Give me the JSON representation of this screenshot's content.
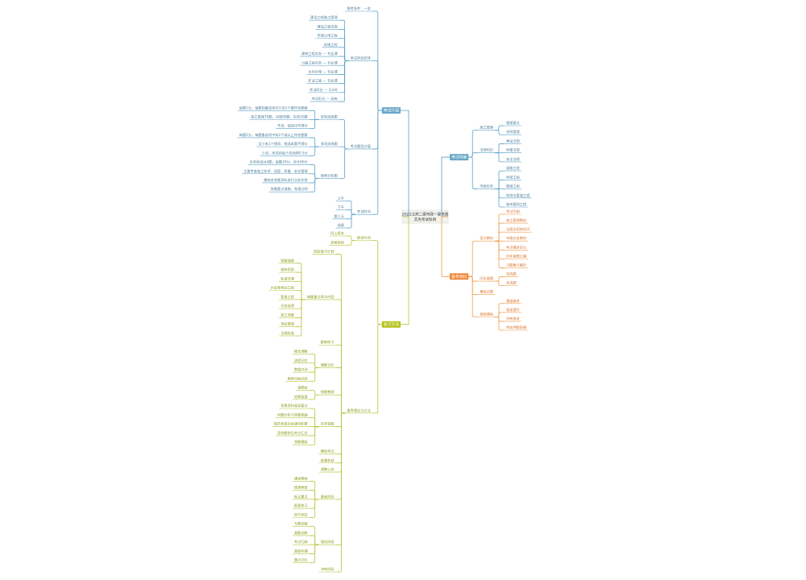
{
  "center": {
    "lines": [
      "2022江苏二建市政一建市政",
      "实务考试科目"
    ]
  },
  "branches": [
    {
      "label": "考试内容",
      "children": [
        {
          "label": "施工管理",
          "children": [
            {
              "label": "管理要点"
            },
            {
              "label": "合同管理"
            }
          ]
        },
        {
          "label": "法规知识",
          "children": [
            {
              "label": "建设法规"
            },
            {
              "label": "质量法规"
            },
            {
              "label": "安全法规"
            }
          ]
        },
        {
          "label": "市政实务",
          "children": [
            {
              "label": "道路工程"
            },
            {
              "label": "桥梁工程"
            },
            {
              "label": "隧道工程"
            },
            {
              "label": "给排水管道工程"
            },
            {
              "label": "城市管网工程"
            }
          ]
        }
      ]
    },
    {
      "label": "备考资料",
      "children": [
        {
          "label": "官方教材",
          "children": [
            {
              "label": "考试大纲"
            },
            {
              "label": "施工管理教材"
            },
            {
              "label": "法规及相关知识"
            },
            {
              "label": "市政实务教材"
            },
            {
              "label": "考点精讲讲义"
            },
            {
              "label": "历年真题汇编"
            },
            {
              "label": "习题集与解析"
            }
          ]
        },
        {
          "label": "历年真题",
          "children": [
            {
              "label": "单选题"
            },
            {
              "label": "多选题"
            }
          ]
        },
        {
          "label": "模拟试题"
        },
        {
          "label": "视频课程",
          "children": [
            {
              "label": "基础精讲"
            },
            {
              "label": "强化提升"
            },
            {
              "label": "冲刺串讲"
            },
            {
              "label": "考前押题直播"
            }
          ]
        }
      ]
    },
    {
      "label": "考试介绍",
      "children": [
        {
          "label": "报考条件：一览"
        },
        {
          "label": "考试科目安排",
          "children": [
            {
              "label": "建设工程施工管理"
            },
            {
              "label": "建设工程法规"
            },
            {
              "label": "市政公用工程"
            },
            {
              "label": "机电工程"
            },
            {
              "label": "建筑工程实务 — 专业课"
            },
            {
              "label": "公路工程实务 — 专业课"
            },
            {
              "label": "水利水电 — 专业课"
            },
            {
              "label": "矿业工程 — 专业课"
            },
            {
              "label": "考试时长 — 3小时"
            },
            {
              "label": "考试形式 — 闭卷"
            }
          ]
        },
        {
          "label": "考试题型分值",
          "children": [
            {
              "label": "单项选择题",
              "children": [
                {
                  "label": "每题1分，每题的备选项中只有1个最符合题意"
                },
                {
                  "label": "施工管理70题，法规60题，实务20题"
                },
                {
                  "label": "不选、错选均不得分"
                }
              ]
            },
            {
              "label": "多项选择题",
              "children": [
                {
                  "label": "每题2分，每题备选项中有2个或以上符合题意"
                },
                {
                  "label": "至少有1个错项，错选本题不得分"
                },
                {
                  "label": "少选，所选的每个选项得0.5分"
                }
              ]
            },
            {
              "label": "案例分析题",
              "children": [
                {
                  "label": "实务科目共4题，每题20分，合计80分"
                },
                {
                  "label": "主要考查施工技术、进度、质量、安全管理"
                },
                {
                  "label": "需结合背景资料进行分析作答"
                },
                {
                  "label": "答题要点清晰，条理分明"
                }
              ]
            }
          ]
        },
        {
          "label": "考试时间",
          "children": [
            {
              "label": "上午"
            },
            {
              "label": "下午"
            },
            {
              "label": "第二天"
            },
            {
              "label": "成绩"
            }
          ]
        }
      ]
    },
    {
      "label": "复习方法",
      "children": [
        {
          "label": "报名时间",
          "children": [
            {
              "label": "网上报名"
            },
            {
              "label": "资格审核"
            }
          ]
        },
        {
          "label": "备考建议与方法",
          "children": [
            {
              "label": "制定复习计划"
            },
            {
              "label": "掌握重点章节内容",
              "children": [
                {
                  "label": "城镇道路"
                },
                {
                  "label": "城市桥梁"
                },
                {
                  "label": "轨道交通"
                },
                {
                  "label": "水处理场站工程"
                },
                {
                  "label": "管道工程"
                },
                {
                  "label": "垃圾处理"
                },
                {
                  "label": "施工测量"
                },
                {
                  "label": "项目管理"
                },
                {
                  "label": "法规标准"
                }
              ]
            },
            {
              "label": "勤做练习"
            },
            {
              "label": "理解记忆",
              "children": [
                {
                  "label": "概念理解"
                },
                {
                  "label": "流程记忆"
                },
                {
                  "label": "数据口诀"
                },
                {
                  "label": "图表归纳总结"
                }
              ]
            },
            {
              "label": "错题整理",
              "children": [
                {
                  "label": "错题本"
                },
                {
                  "label": "定期复盘"
                }
              ]
            },
            {
              "label": "实务答题",
              "children": [
                {
                  "label": "背景资料阅读要点"
                },
                {
                  "label": "问题分析与答题思路"
                },
                {
                  "label": "规范用语及关键词积累"
                },
                {
                  "label": "案例题常见考点汇总"
                },
                {
                  "label": "答题模板"
                }
              ]
            },
            {
              "label": "模拟考试"
            },
            {
              "label": "查漏补缺"
            },
            {
              "label": "调整心态"
            },
            {
              "label": "基础阶段",
              "children": [
                {
                  "label": "通读教材"
                },
                {
                  "label": "梳理框架"
                },
                {
                  "label": "标记重点"
                },
                {
                  "label": "配套练习"
                },
                {
                  "label": "章节测试"
                }
              ]
            },
            {
              "label": "强化阶段",
              "children": [
                {
                  "label": "专题突破"
                },
                {
                  "label": "真题训练"
                },
                {
                  "label": "考点归纳"
                },
                {
                  "label": "查缺补漏"
                },
                {
                  "label": "重点记忆"
                }
              ]
            },
            {
              "label": "冲刺阶段"
            }
          ]
        }
      ]
    }
  ]
}
